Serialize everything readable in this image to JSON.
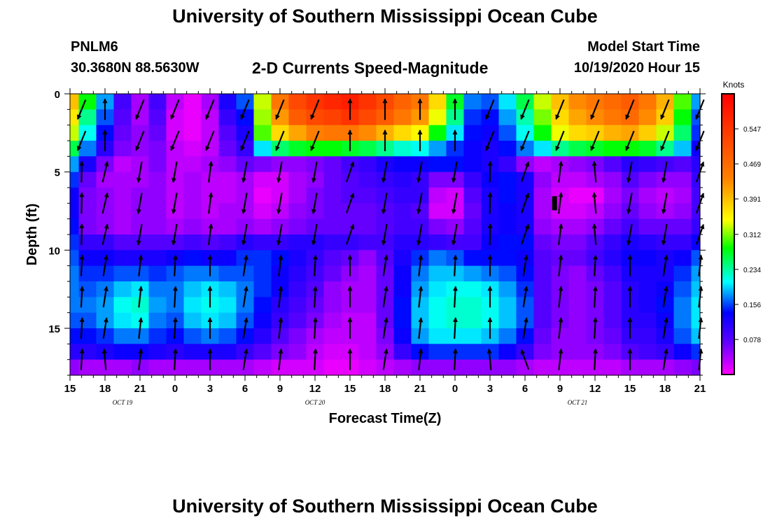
{
  "header": {
    "title": "University of Southern Mississippi Ocean Cube",
    "station_id": "PNLM6",
    "station_coords": "30.3680N 88.5630W",
    "plot_title": "2-D Currents Speed-Magnitude",
    "model_start_label": "Model Start Time",
    "model_start_time": "10/19/2020 Hour 15"
  },
  "footer": {
    "title": "University of Southern Mississippi Ocean Cube"
  },
  "chart_data": {
    "type": "heatmap",
    "title": "2-D Currents Speed-Magnitude",
    "xlabel": "Forecast Time(Z)",
    "ylabel": "Depth (ft)",
    "x_range_hours": [
      0,
      54
    ],
    "x_tick_labels": [
      "15",
      "18",
      "21",
      "0",
      "3",
      "6",
      "9",
      "12",
      "15",
      "18",
      "21",
      "0",
      "3",
      "6",
      "9",
      "12",
      "15",
      "18",
      "21"
    ],
    "date_labels": [
      {
        "text": "OCT 19",
        "hour": 4.5
      },
      {
        "text": "OCT 20",
        "hour": 21
      },
      {
        "text": "OCT 21",
        "hour": 43.5
      }
    ],
    "y_range": [
      0,
      18
    ],
    "y_ticks": [
      0,
      5,
      10,
      15
    ],
    "colorbar": {
      "unit": "Knots",
      "range": [
        0,
        0.625
      ],
      "tick_values": [
        0.078,
        0.156,
        0.234,
        0.312,
        0.391,
        0.469,
        0.547
      ],
      "tick_labels": [
        "0.078",
        "0.156",
        "0.234",
        "0.312",
        "0.391",
        "0.469",
        "0.547"
      ]
    },
    "vector_times": [
      1,
      3,
      6,
      9,
      12,
      15,
      18,
      21,
      24,
      27,
      30,
      33,
      36,
      39,
      42,
      45,
      48,
      51,
      54
    ],
    "vector_depths": [
      1,
      3,
      5,
      7,
      9,
      11,
      13,
      15,
      17
    ],
    "speed_grid": {
      "times": [
        0,
        1.5,
        3,
        4.5,
        6,
        7.5,
        9,
        10.5,
        12,
        13.5,
        15,
        16.5,
        18,
        19.5,
        21,
        22.5,
        24,
        25.5,
        27,
        28.5,
        30,
        31.5,
        33,
        34.5,
        36,
        37.5,
        39,
        40.5,
        42,
        43.5,
        45,
        46.5,
        48,
        49.5,
        51,
        52.5,
        54
      ],
      "depths": [
        0.5,
        1.5,
        2.5,
        3.5,
        4.5,
        5.5,
        6.5,
        7.5,
        8.5,
        9.5,
        10.5,
        11.5,
        12.5,
        13.5,
        14.5,
        15.5,
        16.5,
        17.5
      ],
      "values": [
        [
          0.39,
          0.28,
          0.18,
          0.09,
          0.04,
          0.09,
          0.03,
          0.01,
          0.04,
          0.12,
          0.16,
          0.33,
          0.45,
          0.52,
          0.55,
          0.57,
          0.58,
          0.55,
          0.52,
          0.48,
          0.45,
          0.37,
          0.27,
          0.17,
          0.16,
          0.2,
          0.26,
          0.33,
          0.39,
          0.43,
          0.45,
          0.47,
          0.49,
          0.45,
          0.4,
          0.3,
          0.18
        ],
        [
          0.36,
          0.24,
          0.16,
          0.08,
          0.04,
          0.08,
          0.02,
          0.01,
          0.03,
          0.1,
          0.14,
          0.32,
          0.42,
          0.49,
          0.52,
          0.53,
          0.55,
          0.52,
          0.49,
          0.45,
          0.42,
          0.34,
          0.24,
          0.15,
          0.14,
          0.18,
          0.23,
          0.31,
          0.37,
          0.41,
          0.43,
          0.45,
          0.47,
          0.43,
          0.38,
          0.28,
          0.16
        ],
        [
          0.33,
          0.21,
          0.14,
          0.07,
          0.05,
          0.07,
          0.02,
          0.01,
          0.03,
          0.08,
          0.12,
          0.3,
          0.37,
          0.41,
          0.44,
          0.45,
          0.45,
          0.43,
          0.4,
          0.37,
          0.35,
          0.28,
          0.2,
          0.14,
          0.13,
          0.16,
          0.21,
          0.28,
          0.34,
          0.37,
          0.38,
          0.4,
          0.41,
          0.38,
          0.33,
          0.25,
          0.15
        ],
        [
          0.26,
          0.17,
          0.11,
          0.06,
          0.05,
          0.06,
          0.03,
          0.02,
          0.03,
          0.07,
          0.1,
          0.2,
          0.25,
          0.27,
          0.28,
          0.28,
          0.27,
          0.26,
          0.24,
          0.22,
          0.21,
          0.18,
          0.15,
          0.13,
          0.12,
          0.14,
          0.17,
          0.2,
          0.24,
          0.26,
          0.27,
          0.28,
          0.28,
          0.27,
          0.24,
          0.19,
          0.13
        ],
        [
          0.18,
          0.12,
          0.06,
          0.03,
          0.04,
          0.06,
          0.03,
          0.03,
          0.04,
          0.05,
          0.07,
          0.06,
          0.05,
          0.05,
          0.06,
          0.07,
          0.09,
          0.1,
          0.12,
          0.13,
          0.13,
          0.14,
          0.14,
          0.13,
          0.12,
          0.1,
          0.05,
          0.03,
          0.04,
          0.05,
          0.06,
          0.08,
          0.11,
          0.1,
          0.09,
          0.08,
          0.11
        ],
        [
          0.15,
          0.07,
          0.04,
          0.04,
          0.04,
          0.05,
          0.03,
          0.04,
          0.03,
          0.03,
          0.04,
          0.02,
          0.02,
          0.04,
          0.05,
          0.07,
          0.08,
          0.09,
          0.1,
          0.11,
          0.1,
          0.06,
          0.06,
          0.1,
          0.13,
          0.14,
          0.12,
          0.05,
          0.03,
          0.03,
          0.04,
          0.05,
          0.08,
          0.06,
          0.05,
          0.05,
          0.1
        ],
        [
          0.13,
          0.06,
          0.05,
          0.04,
          0.05,
          0.05,
          0.03,
          0.04,
          0.03,
          0.03,
          0.04,
          0.01,
          0.02,
          0.04,
          0.06,
          0.07,
          0.08,
          0.08,
          0.09,
          0.1,
          0.1,
          0.03,
          0.02,
          0.08,
          0.12,
          0.14,
          0.12,
          0.04,
          0.02,
          0.01,
          0.01,
          0.04,
          0.06,
          0.04,
          0.03,
          0.04,
          0.09
        ],
        [
          0.13,
          0.06,
          0.05,
          0.04,
          0.05,
          0.05,
          0.03,
          0.04,
          0.03,
          0.04,
          0.04,
          0.02,
          0.03,
          0.05,
          0.06,
          0.07,
          0.07,
          0.07,
          0.08,
          0.09,
          0.08,
          0.02,
          0.02,
          0.07,
          0.12,
          0.13,
          0.12,
          0.04,
          0.02,
          0.02,
          0.03,
          0.05,
          0.07,
          0.05,
          0.04,
          0.05,
          0.09
        ],
        [
          0.14,
          0.06,
          0.05,
          0.04,
          0.05,
          0.05,
          0.04,
          0.05,
          0.04,
          0.04,
          0.05,
          0.04,
          0.05,
          0.06,
          0.07,
          0.07,
          0.07,
          0.07,
          0.08,
          0.09,
          0.09,
          0.06,
          0.05,
          0.08,
          0.12,
          0.13,
          0.12,
          0.05,
          0.04,
          0.04,
          0.05,
          0.07,
          0.09,
          0.07,
          0.07,
          0.07,
          0.1
        ],
        [
          0.15,
          0.1,
          0.1,
          0.08,
          0.08,
          0.08,
          0.08,
          0.09,
          0.08,
          0.09,
          0.11,
          0.1,
          0.1,
          0.11,
          0.11,
          0.1,
          0.1,
          0.09,
          0.09,
          0.11,
          0.11,
          0.1,
          0.09,
          0.09,
          0.13,
          0.14,
          0.14,
          0.07,
          0.06,
          0.06,
          0.08,
          0.1,
          0.12,
          0.11,
          0.1,
          0.1,
          0.13
        ],
        [
          0.16,
          0.13,
          0.13,
          0.12,
          0.12,
          0.12,
          0.13,
          0.14,
          0.13,
          0.13,
          0.15,
          0.15,
          0.14,
          0.12,
          0.1,
          0.08,
          0.07,
          0.05,
          0.08,
          0.12,
          0.15,
          0.17,
          0.16,
          0.14,
          0.14,
          0.14,
          0.13,
          0.08,
          0.07,
          0.07,
          0.09,
          0.11,
          0.13,
          0.13,
          0.12,
          0.13,
          0.16
        ],
        [
          0.17,
          0.15,
          0.15,
          0.16,
          0.16,
          0.15,
          0.16,
          0.17,
          0.17,
          0.16,
          0.16,
          0.15,
          0.13,
          0.11,
          0.09,
          0.07,
          0.05,
          0.04,
          0.07,
          0.13,
          0.17,
          0.19,
          0.19,
          0.18,
          0.17,
          0.16,
          0.14,
          0.08,
          0.06,
          0.05,
          0.07,
          0.09,
          0.12,
          0.12,
          0.12,
          0.15,
          0.18
        ],
        [
          0.17,
          0.16,
          0.17,
          0.19,
          0.2,
          0.17,
          0.17,
          0.19,
          0.2,
          0.19,
          0.17,
          0.15,
          0.13,
          0.1,
          0.08,
          0.05,
          0.04,
          0.04,
          0.07,
          0.13,
          0.18,
          0.2,
          0.21,
          0.21,
          0.2,
          0.18,
          0.15,
          0.08,
          0.06,
          0.05,
          0.06,
          0.08,
          0.11,
          0.12,
          0.13,
          0.16,
          0.19
        ],
        [
          0.17,
          0.17,
          0.18,
          0.21,
          0.22,
          0.18,
          0.17,
          0.2,
          0.21,
          0.2,
          0.17,
          0.14,
          0.11,
          0.09,
          0.07,
          0.05,
          0.04,
          0.04,
          0.07,
          0.14,
          0.19,
          0.21,
          0.22,
          0.22,
          0.21,
          0.19,
          0.16,
          0.08,
          0.06,
          0.05,
          0.06,
          0.08,
          0.11,
          0.12,
          0.14,
          0.17,
          0.2
        ],
        [
          0.16,
          0.16,
          0.18,
          0.2,
          0.21,
          0.17,
          0.16,
          0.19,
          0.2,
          0.19,
          0.16,
          0.13,
          0.1,
          0.08,
          0.06,
          0.04,
          0.03,
          0.03,
          0.07,
          0.14,
          0.19,
          0.21,
          0.22,
          0.22,
          0.21,
          0.19,
          0.16,
          0.08,
          0.06,
          0.05,
          0.06,
          0.08,
          0.11,
          0.11,
          0.13,
          0.17,
          0.2
        ],
        [
          0.14,
          0.14,
          0.15,
          0.17,
          0.17,
          0.15,
          0.14,
          0.16,
          0.17,
          0.16,
          0.14,
          0.11,
          0.08,
          0.06,
          0.04,
          0.03,
          0.03,
          0.03,
          0.06,
          0.13,
          0.18,
          0.2,
          0.2,
          0.2,
          0.19,
          0.17,
          0.14,
          0.07,
          0.05,
          0.05,
          0.06,
          0.07,
          0.1,
          0.1,
          0.12,
          0.16,
          0.19
        ],
        [
          0.11,
          0.11,
          0.12,
          0.13,
          0.13,
          0.12,
          0.11,
          0.12,
          0.12,
          0.12,
          0.1,
          0.08,
          0.06,
          0.05,
          0.03,
          0.02,
          0.02,
          0.03,
          0.05,
          0.1,
          0.14,
          0.15,
          0.15,
          0.15,
          0.15,
          0.13,
          0.1,
          0.06,
          0.05,
          0.05,
          0.05,
          0.06,
          0.08,
          0.09,
          0.1,
          0.13,
          0.15
        ],
        [
          0.05,
          0.04,
          0.04,
          0.04,
          0.05,
          0.04,
          0.04,
          0.04,
          0.04,
          0.04,
          0.04,
          0.03,
          0.02,
          0.02,
          0.02,
          0.01,
          0.01,
          0.02,
          0.03,
          0.04,
          0.05,
          0.05,
          0.05,
          0.05,
          0.05,
          0.05,
          0.04,
          0.03,
          0.03,
          0.03,
          0.03,
          0.03,
          0.04,
          0.04,
          0.04,
          0.05,
          0.06
        ]
      ]
    },
    "calm_marker": {
      "hour": 41.5,
      "depth": 7
    }
  }
}
